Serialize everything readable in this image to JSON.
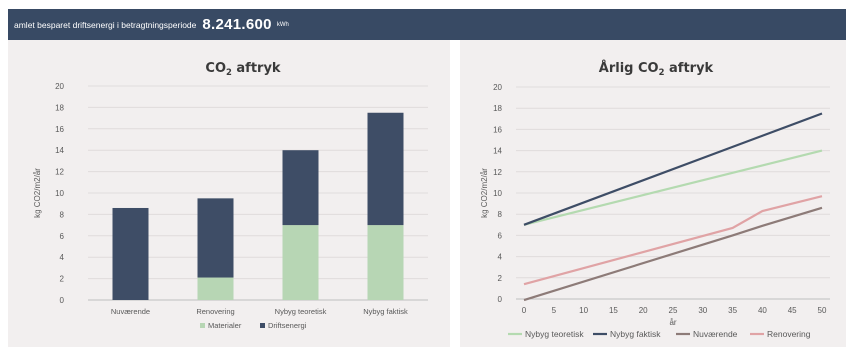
{
  "banner": {
    "label": "amlet besparet driftsenergi i betragtningsperiode",
    "value": "8.241.600",
    "unit": "kWh"
  },
  "colors": {
    "banner_bg": "#384a64",
    "panel_bg": "#f2efef",
    "materialer": "#b7d6b4",
    "driftsenergi": "#3e4d66",
    "nybyg_teoretisk": "#b4dab0",
    "nybyg_faktisk": "#3e4d66",
    "nuvaerende": "#8d7b78",
    "renovering": "#e0a3a5"
  },
  "chart_data": [
    {
      "type": "bar",
      "stacked": true,
      "title": "CO2 aftryk",
      "ylabel": "kg CO2/m2/år",
      "xlabel": "",
      "ylim": [
        0,
        20
      ],
      "yticks": [
        "0",
        "2",
        "4",
        "6",
        "8",
        "10",
        "12",
        "14",
        "16",
        "18",
        "20"
      ],
      "categories": [
        "Nuværende",
        "Renovering",
        "Nybyg teoretisk",
        "Nybyg faktisk"
      ],
      "series": [
        {
          "name": "Materialer",
          "values": [
            0,
            2.1,
            7.0,
            7.0
          ]
        },
        {
          "name": "Driftsenergi",
          "values": [
            8.6,
            7.4,
            7.0,
            10.5
          ]
        }
      ],
      "legend": "bottom",
      "grid": true
    },
    {
      "type": "line",
      "title": "Årlig CO2 aftryk",
      "ylabel": "kg CO2/m2/år",
      "xlabel": "år",
      "ylim": [
        0,
        20
      ],
      "xlim": [
        0,
        50
      ],
      "yticks": [
        "0",
        "2",
        "4",
        "6",
        "8",
        "10",
        "12",
        "14",
        "16",
        "18",
        "20"
      ],
      "xticks": [
        "0",
        "5",
        "10",
        "15",
        "20",
        "25",
        "30",
        "35",
        "40",
        "45",
        "50"
      ],
      "x": [
        0,
        35,
        40,
        50
      ],
      "series": [
        {
          "name": "Nybyg teoretisk",
          "values": [
            7.0,
            11.9,
            12.6,
            14.0
          ]
        },
        {
          "name": "Nybyg faktisk",
          "values": [
            7.0,
            14.35,
            15.4,
            17.5
          ]
        },
        {
          "name": "Nuværende",
          "values": [
            -0.1,
            6.0,
            6.9,
            8.6
          ]
        },
        {
          "name": "Renovering",
          "values": [
            1.4,
            6.7,
            8.3,
            9.7
          ]
        }
      ],
      "legend": "bottom",
      "grid": true
    }
  ]
}
